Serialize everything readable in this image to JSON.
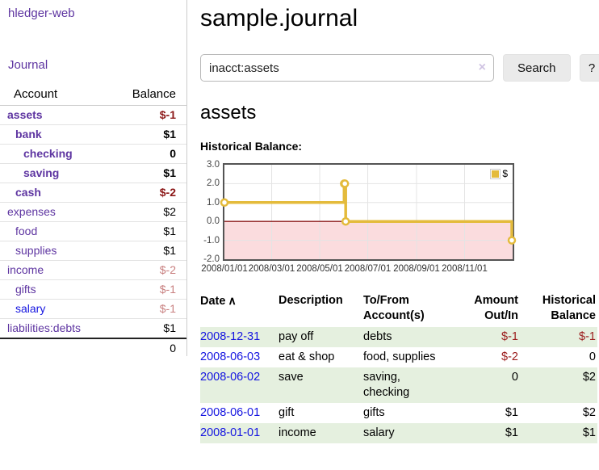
{
  "app": {
    "brand": "hledger-web"
  },
  "sidebar": {
    "nav_journal": "Journal",
    "accounts_table": {
      "col_account": "Account",
      "col_balance": "Balance",
      "rows": [
        {
          "name": "assets",
          "indent": 1,
          "bold": true,
          "balance": "$-1",
          "balance_style": "neg"
        },
        {
          "name": "bank",
          "indent": 2,
          "bold": true,
          "balance": "$1",
          "balance_style": "pos"
        },
        {
          "name": "checking",
          "indent": 3,
          "bold": true,
          "balance": "0",
          "balance_style": "pos"
        },
        {
          "name": "saving",
          "indent": 3,
          "bold": true,
          "balance": "$1",
          "balance_style": "pos"
        },
        {
          "name": "cash",
          "indent": 2,
          "bold": true,
          "balance": "$-2",
          "balance_style": "neg"
        },
        {
          "name": "expenses",
          "indent": 1,
          "bold": false,
          "balance": "$2",
          "balance_style": "pos"
        },
        {
          "name": "food",
          "indent": 2,
          "bold": false,
          "balance": "$1",
          "balance_style": "pos"
        },
        {
          "name": "supplies",
          "indent": 2,
          "bold": false,
          "balance": "$1",
          "balance_style": "pos"
        },
        {
          "name": "income",
          "indent": 1,
          "bold": false,
          "balance": "$-2",
          "balance_style": "neglight"
        },
        {
          "name": "gifts",
          "indent": 2,
          "bold": false,
          "balance": "$-1",
          "balance_style": "neglight"
        },
        {
          "name": "salary",
          "indent": 2,
          "bold": false,
          "balance": "$-1",
          "balance_style": "neglight",
          "link_color": "blue"
        },
        {
          "name": "liabilities:debts",
          "indent": 1,
          "bold": false,
          "balance": "$1",
          "balance_style": "pos"
        }
      ],
      "total": "0"
    }
  },
  "header": {
    "title": "sample.journal"
  },
  "search": {
    "value": "inacct:assets",
    "clear_icon": "×",
    "search_button": "Search",
    "help_button": "?"
  },
  "account_page": {
    "heading": "assets",
    "chart_title": "Historical Balance:"
  },
  "chart_data": {
    "type": "line",
    "step": true,
    "title": "Historical Balance:",
    "legend": {
      "label": "$",
      "position": "top-right"
    },
    "series": [
      {
        "name": "$",
        "color": "#e4bb3c",
        "points": [
          {
            "date": "2008-01-01",
            "value": 1
          },
          {
            "date": "2008-06-01",
            "value": 2
          },
          {
            "date": "2008-06-02",
            "value": 2
          },
          {
            "date": "2008-06-03",
            "value": 0
          },
          {
            "date": "2008-12-31",
            "value": -1
          }
        ],
        "points_days": [
          [
            0,
            1
          ],
          [
            152,
            2
          ],
          [
            153,
            2
          ],
          [
            154,
            0
          ],
          [
            365,
            -1
          ]
        ]
      }
    ],
    "ylim": [
      -2,
      3
    ],
    "yticks": [
      {
        "v": 3,
        "label": "3.0"
      },
      {
        "v": 2,
        "label": "2.0"
      },
      {
        "v": 1,
        "label": "1.0"
      },
      {
        "v": 0,
        "label": "0.0"
      },
      {
        "v": -1,
        "label": "-1.0"
      },
      {
        "v": -2,
        "label": "-2.0"
      }
    ],
    "xticks": [
      {
        "day": 0,
        "label": "2008/01/01"
      },
      {
        "day": 60,
        "label": "2008/03/01"
      },
      {
        "day": 121,
        "label": "2008/05/01"
      },
      {
        "day": 182,
        "label": "2008/07/01"
      },
      {
        "day": 244,
        "label": "2008/09/01"
      },
      {
        "day": 305,
        "label": "2008/11/01"
      }
    ],
    "x_range_days": 366,
    "colors": {
      "negative_fill": "#fbdcde",
      "zero_line": "#8b1a1a",
      "grid": "#e4e4e4",
      "plot_border": "#545454",
      "marker_fill": "#ffffff"
    }
  },
  "register": {
    "headers": {
      "date": "Date",
      "sort_icon": "∧",
      "description": "Description",
      "accounts": "To/From Account(s)",
      "amount": "Amount Out/In",
      "balance": "Historical Balance"
    },
    "rows": [
      {
        "date": "2008-12-31",
        "description": "pay off",
        "accounts": "debts",
        "amount": "$-1",
        "amount_neg": true,
        "balance": "$-1",
        "balance_neg": true
      },
      {
        "date": "2008-06-03",
        "description": "eat & shop",
        "accounts": "food, supplies",
        "amount": "$-2",
        "amount_neg": true,
        "balance": "0",
        "balance_neg": false
      },
      {
        "date": "2008-06-02",
        "description": "save",
        "accounts": "saving, checking",
        "amount": "0",
        "amount_neg": false,
        "balance": "$2",
        "balance_neg": false
      },
      {
        "date": "2008-06-01",
        "description": "gift",
        "accounts": "gifts",
        "amount": "$1",
        "amount_neg": false,
        "balance": "$2",
        "balance_neg": false
      },
      {
        "date": "2008-01-01",
        "description": "income",
        "accounts": "salary",
        "amount": "$1",
        "amount_neg": false,
        "balance": "$1",
        "balance_neg": false
      }
    ]
  }
}
